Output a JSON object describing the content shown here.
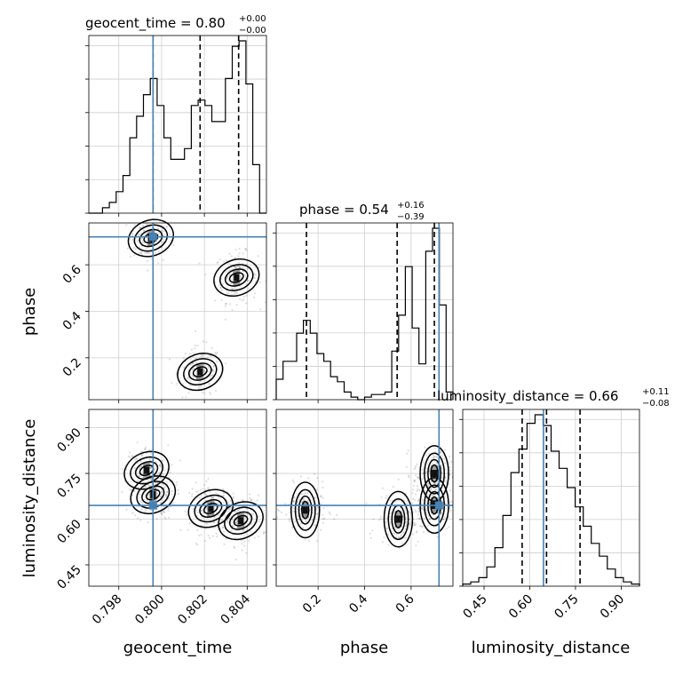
{
  "chart_data": {
    "type": "corner",
    "parameters": [
      "geocent_time",
      "phase",
      "luminosity_distance"
    ],
    "truths": {
      "geocent_time": 0.7996,
      "phase": 0.72,
      "luminosity_distance": 0.645
    },
    "ranges": {
      "geocent_time": [
        0.7966,
        0.8049
      ],
      "phase": [
        0.02,
        0.78
      ],
      "luminosity_distance": [
        0.38,
        0.96
      ]
    },
    "ticks": {
      "geocent_time": [
        "0.798",
        "0.800",
        "0.802",
        "0.804"
      ],
      "phase": [
        "0.2",
        "0.4",
        "0.6"
      ],
      "luminosity_distance": [
        "0.45",
        "0.60",
        "0.75",
        "0.90"
      ]
    },
    "tick_values": {
      "geocent_time": [
        0.798,
        0.8,
        0.802,
        0.804
      ],
      "phase": [
        0.2,
        0.4,
        0.6
      ],
      "luminosity_distance": [
        0.45,
        0.6,
        0.75,
        0.9
      ]
    },
    "titles": [
      {
        "param": "geocent_time",
        "label": "geocent_time = 0.80",
        "plus": "+0.00",
        "minus": "−0.00",
        "quantiles": [
          0.7996,
          0.8018,
          0.8036
        ]
      },
      {
        "param": "phase",
        "label": "phase = 0.54",
        "plus": "+0.16",
        "minus": "−0.39",
        "quantiles": [
          0.15,
          0.54,
          0.7
        ]
      },
      {
        "param": "luminosity_distance",
        "label": "luminosity_distance = 0.66",
        "plus": "+0.11",
        "minus": "−0.08",
        "quantiles": [
          0.575,
          0.655,
          0.765
        ]
      }
    ],
    "hist_geocent_time": [
      0,
      0,
      1,
      2,
      4,
      7,
      14,
      18,
      22,
      25,
      20,
      14,
      10,
      10,
      12,
      20,
      21,
      20,
      17,
      17,
      25,
      31,
      32,
      24,
      9,
      0
    ],
    "hist_phase": [
      8,
      15,
      15,
      26,
      31,
      26,
      18,
      15,
      9,
      7,
      3,
      1,
      0,
      1,
      2,
      2,
      3,
      19,
      33,
      52,
      28,
      14,
      58,
      67,
      37,
      3
    ],
    "hist_luminosity_distance": [
      1,
      2,
      4,
      9,
      18,
      33,
      53,
      64,
      76,
      80,
      75,
      63,
      55,
      46,
      37,
      28,
      20,
      14,
      8,
      4,
      2,
      1
    ],
    "density_cores": [
      {
        "x": "geocent_time",
        "y": "phase",
        "points": [
          [
            0.7995,
            0.715
          ],
          [
            0.8035,
            0.545
          ],
          [
            0.8018,
            0.14
          ]
        ]
      },
      {
        "x": "geocent_time",
        "y": "luminosity_distance",
        "points": [
          [
            0.7993,
            0.76
          ],
          [
            0.7996,
            0.68
          ],
          [
            0.8037,
            0.595
          ],
          [
            0.8023,
            0.635
          ]
        ]
      },
      {
        "x": "phase",
        "y": "luminosity_distance",
        "points": [
          [
            0.145,
            0.63
          ],
          [
            0.545,
            0.6
          ],
          [
            0.7,
            0.75
          ],
          [
            0.7,
            0.645
          ]
        ]
      }
    ]
  }
}
